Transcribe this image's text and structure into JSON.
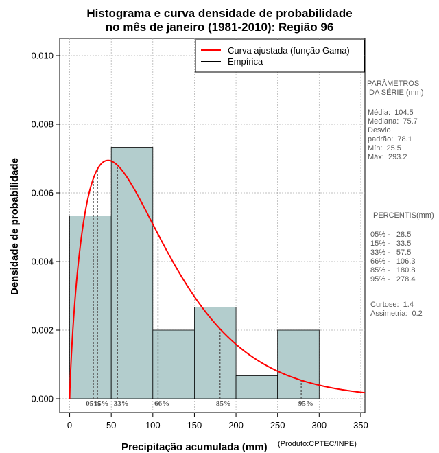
{
  "chart_data": {
    "type": "bar",
    "title": "Histograma e curva densidade de probabilidade",
    "subtitle": "no mês de janeiro (1981-2010): Região 96",
    "xlabel": "Precipitação acumulada (mm)",
    "ylabel": "Densidade de probabilidade",
    "xlim": [
      -12,
      355
    ],
    "ylim": [
      -0.0004,
      0.0105
    ],
    "x_ticks": [
      0,
      50,
      100,
      150,
      200,
      250,
      300,
      350
    ],
    "y_ticks": [
      0.0,
      0.002,
      0.004,
      0.006,
      0.008,
      0.01
    ],
    "y_tick_labels": [
      "0.000",
      "0.002",
      "0.004",
      "0.006",
      "0.008",
      "0.010"
    ],
    "grid": true,
    "bins": [
      {
        "from": 0,
        "to": 50,
        "density": 0.00533
      },
      {
        "from": 50,
        "to": 100,
        "density": 0.00733
      },
      {
        "from": 100,
        "to": 150,
        "density": 0.002
      },
      {
        "from": 150,
        "to": 200,
        "density": 0.00267
      },
      {
        "from": 200,
        "to": 250,
        "density": 0.00067
      },
      {
        "from": 250,
        "to": 300,
        "density": 0.002
      }
    ],
    "gamma_fit": {
      "shape": 1.79,
      "scale": 58.4,
      "name": "Curva ajustada (função Gama)"
    },
    "empirical_name": "Empírica",
    "percentile_lines": [
      {
        "label": "05%",
        "value": 28.5
      },
      {
        "label": "15%",
        "value": 33.5
      },
      {
        "label": "33%",
        "value": 57.5
      },
      {
        "label": "66%",
        "value": 106.3
      },
      {
        "label": "85%",
        "value": 180.8
      },
      {
        "label": "95%",
        "value": 278.4
      }
    ],
    "percentile_marks": [
      {
        "label": "05%",
        "x": 28.5
      },
      {
        "label": "15%",
        "x": 38
      },
      {
        "label": "33%",
        "x": 62
      },
      {
        "label": "66%",
        "x": 111
      },
      {
        "label": "85%",
        "x": 185
      },
      {
        "label": "95%",
        "x": 284
      }
    ],
    "colors": {
      "bars": "#b3cdcd",
      "curve": "#ff0000",
      "percentile": "#555555",
      "grid": "#aaaaaa"
    }
  },
  "legend": {
    "curve_label": "Curva ajustada (função Gama)",
    "empirical_label": "Empírica"
  },
  "side_panel": {
    "params_header_1": "PARÂMETROS",
    "params_header_2": " DA SÉRIE (mm)",
    "media": "Média:  104.5",
    "mediana": "Mediana:  75.7",
    "desvio_1": "Desvio",
    "desvio_2": "padrão:  78.1",
    "min": "Mín:  25.5",
    "max": "Máx:  293.2",
    "percentis_header": "PERCENTIS(mm)",
    "p05": "05% -   28.5",
    "p15": "15% -   33.5",
    "p33": "33% -   57.5",
    "p66": "66% -   106.3",
    "p85": "85% -   180.8",
    "p95": "95% -   278.4",
    "curtose": "Curtose:  1.4",
    "assimetria": "Assimetria:  0.2"
  },
  "footer": {
    "product": "(Produto:CPTEC/INPE)"
  }
}
